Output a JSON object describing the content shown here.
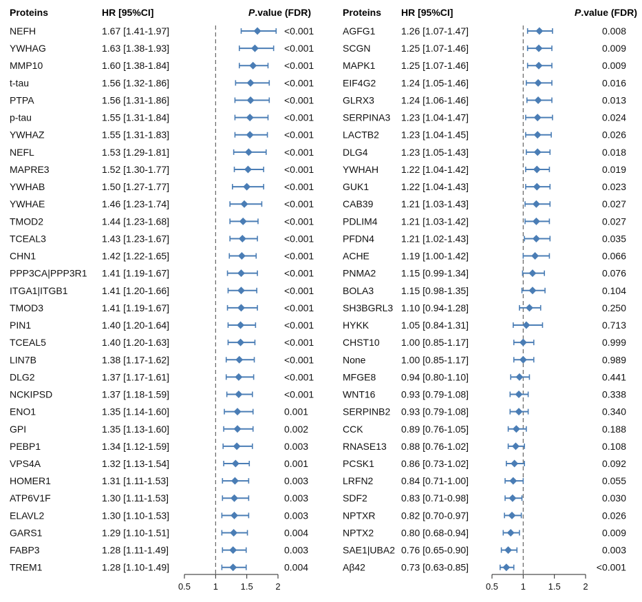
{
  "chart_data": [
    {
      "type": "forest",
      "columns": {
        "proteins": "Proteins",
        "hr": "HR [95%CI]",
        "p_italic": "P",
        "p_rest": ".value (FDR)"
      },
      "xlim": [
        0.5,
        2
      ],
      "xticks": [
        "0.5",
        "1",
        "1.5",
        "2"
      ],
      "reference_line": 1,
      "point_color": "#4A7DB5",
      "rows": [
        {
          "protein": "NEFH",
          "hr_text": "1.67 [1.41-1.97]",
          "p_text": "<0.001",
          "hr": 1.67,
          "lo": 1.41,
          "hi": 1.97
        },
        {
          "protein": "YWHAG",
          "hr_text": "1.63 [1.38-1.93]",
          "p_text": "<0.001",
          "hr": 1.63,
          "lo": 1.38,
          "hi": 1.93
        },
        {
          "protein": "MMP10",
          "hr_text": "1.60 [1.38-1.84]",
          "p_text": "<0.001",
          "hr": 1.6,
          "lo": 1.38,
          "hi": 1.84
        },
        {
          "protein": "t-tau",
          "hr_text": "1.56 [1.32-1.86]",
          "p_text": "<0.001",
          "hr": 1.56,
          "lo": 1.32,
          "hi": 1.86
        },
        {
          "protein": "PTPA",
          "hr_text": "1.56 [1.31-1.86]",
          "p_text": "<0.001",
          "hr": 1.56,
          "lo": 1.31,
          "hi": 1.86
        },
        {
          "protein": "p-tau",
          "hr_text": "1.55 [1.31-1.84]",
          "p_text": "<0.001",
          "hr": 1.55,
          "lo": 1.31,
          "hi": 1.84
        },
        {
          "protein": "YWHAZ",
          "hr_text": "1.55 [1.31-1.83]",
          "p_text": "<0.001",
          "hr": 1.55,
          "lo": 1.31,
          "hi": 1.83
        },
        {
          "protein": "NEFL",
          "hr_text": "1.53 [1.29-1.81]",
          "p_text": "<0.001",
          "hr": 1.53,
          "lo": 1.29,
          "hi": 1.81
        },
        {
          "protein": "MAPRE3",
          "hr_text": "1.52 [1.30-1.77]",
          "p_text": "<0.001",
          "hr": 1.52,
          "lo": 1.3,
          "hi": 1.77
        },
        {
          "protein": "YWHAB",
          "hr_text": "1.50 [1.27-1.77]",
          "p_text": "<0.001",
          "hr": 1.5,
          "lo": 1.27,
          "hi": 1.77
        },
        {
          "protein": "YWHAE",
          "hr_text": "1.46 [1.23-1.74]",
          "p_text": "<0.001",
          "hr": 1.46,
          "lo": 1.23,
          "hi": 1.74
        },
        {
          "protein": "TMOD2",
          "hr_text": "1.44 [1.23-1.68]",
          "p_text": "<0.001",
          "hr": 1.44,
          "lo": 1.23,
          "hi": 1.68
        },
        {
          "protein": "TCEAL3",
          "hr_text": "1.43 [1.23-1.67]",
          "p_text": "<0.001",
          "hr": 1.43,
          "lo": 1.23,
          "hi": 1.67
        },
        {
          "protein": "CHN1",
          "hr_text": "1.42 [1.22-1.65]",
          "p_text": "<0.001",
          "hr": 1.42,
          "lo": 1.22,
          "hi": 1.65
        },
        {
          "protein": "PPP3CA|PPP3R1",
          "hr_text": "1.41 [1.19-1.67]",
          "p_text": "<0.001",
          "hr": 1.41,
          "lo": 1.19,
          "hi": 1.67
        },
        {
          "protein": "ITGA1|ITGB1",
          "hr_text": "1.41 [1.20-1.66]",
          "p_text": "<0.001",
          "hr": 1.41,
          "lo": 1.2,
          "hi": 1.66
        },
        {
          "protein": "TMOD3",
          "hr_text": "1.41 [1.19-1.67]",
          "p_text": "<0.001",
          "hr": 1.41,
          "lo": 1.19,
          "hi": 1.67
        },
        {
          "protein": "PIN1",
          "hr_text": "1.40 [1.20-1.64]",
          "p_text": "<0.001",
          "hr": 1.4,
          "lo": 1.2,
          "hi": 1.64
        },
        {
          "protein": "TCEAL5",
          "hr_text": "1.40 [1.20-1.63]",
          "p_text": "<0.001",
          "hr": 1.4,
          "lo": 1.2,
          "hi": 1.63
        },
        {
          "protein": "LIN7B",
          "hr_text": "1.38 [1.17-1.62]",
          "p_text": "<0.001",
          "hr": 1.38,
          "lo": 1.17,
          "hi": 1.62
        },
        {
          "protein": "DLG2",
          "hr_text": "1.37 [1.17-1.61]",
          "p_text": "<0.001",
          "hr": 1.37,
          "lo": 1.17,
          "hi": 1.61
        },
        {
          "protein": "NCKIPSD",
          "hr_text": "1.37 [1.18-1.59]",
          "p_text": "<0.001",
          "hr": 1.37,
          "lo": 1.18,
          "hi": 1.59
        },
        {
          "protein": "ENO1",
          "hr_text": "1.35 [1.14-1.60]",
          "p_text": "0.001",
          "hr": 1.35,
          "lo": 1.14,
          "hi": 1.6
        },
        {
          "protein": "GPI",
          "hr_text": "1.35 [1.13-1.60]",
          "p_text": "0.002",
          "hr": 1.35,
          "lo": 1.13,
          "hi": 1.6
        },
        {
          "protein": "PEBP1",
          "hr_text": "1.34 [1.12-1.59]",
          "p_text": "0.003",
          "hr": 1.34,
          "lo": 1.12,
          "hi": 1.59
        },
        {
          "protein": "VPS4A",
          "hr_text": "1.32 [1.13-1.54]",
          "p_text": "0.001",
          "hr": 1.32,
          "lo": 1.13,
          "hi": 1.54
        },
        {
          "protein": "HOMER1",
          "hr_text": "1.31 [1.11-1.53]",
          "p_text": "0.003",
          "hr": 1.31,
          "lo": 1.11,
          "hi": 1.53
        },
        {
          "protein": "ATP6V1F",
          "hr_text": "1.30 [1.11-1.53]",
          "p_text": "0.003",
          "hr": 1.3,
          "lo": 1.11,
          "hi": 1.53
        },
        {
          "protein": "ELAVL2",
          "hr_text": "1.30 [1.10-1.53]",
          "p_text": "0.003",
          "hr": 1.3,
          "lo": 1.1,
          "hi": 1.53
        },
        {
          "protein": "GARS1",
          "hr_text": "1.29 [1.10-1.51]",
          "p_text": "0.004",
          "hr": 1.29,
          "lo": 1.1,
          "hi": 1.51
        },
        {
          "protein": "FABP3",
          "hr_text": "1.28 [1.11-1.49]",
          "p_text": "0.003",
          "hr": 1.28,
          "lo": 1.11,
          "hi": 1.49
        },
        {
          "protein": "TREM1",
          "hr_text": "1.28 [1.10-1.49]",
          "p_text": "0.004",
          "hr": 1.28,
          "lo": 1.1,
          "hi": 1.49
        }
      ]
    },
    {
      "type": "forest",
      "columns": {
        "proteins": "Proteins",
        "hr": "HR [95%CI]",
        "p_italic": "P",
        "p_rest": ".value (FDR)"
      },
      "xlim": [
        0.5,
        2
      ],
      "xticks": [
        "0.5",
        "1",
        "1.5",
        "2"
      ],
      "reference_line": 1,
      "point_color": "#4A7DB5",
      "rows": [
        {
          "protein": "AGFG1",
          "hr_text": "1.26 [1.07-1.47]",
          "p_text": "0.008",
          "hr": 1.26,
          "lo": 1.07,
          "hi": 1.47
        },
        {
          "protein": "SCGN",
          "hr_text": "1.25 [1.07-1.46]",
          "p_text": "0.009",
          "hr": 1.25,
          "lo": 1.07,
          "hi": 1.46
        },
        {
          "protein": "MAPK1",
          "hr_text": "1.25 [1.07-1.46]",
          "p_text": "0.009",
          "hr": 1.25,
          "lo": 1.07,
          "hi": 1.46
        },
        {
          "protein": "EIF4G2",
          "hr_text": "1.24 [1.05-1.46]",
          "p_text": "0.016",
          "hr": 1.24,
          "lo": 1.05,
          "hi": 1.46
        },
        {
          "protein": "GLRX3",
          "hr_text": "1.24 [1.06-1.46]",
          "p_text": "0.013",
          "hr": 1.24,
          "lo": 1.06,
          "hi": 1.46
        },
        {
          "protein": "SERPINA3",
          "hr_text": "1.23 [1.04-1.47]",
          "p_text": "0.024",
          "hr": 1.23,
          "lo": 1.04,
          "hi": 1.47
        },
        {
          "protein": "LACTB2",
          "hr_text": "1.23 [1.04-1.45]",
          "p_text": "0.026",
          "hr": 1.23,
          "lo": 1.04,
          "hi": 1.45
        },
        {
          "protein": "DLG4",
          "hr_text": "1.23 [1.05-1.43]",
          "p_text": "0.018",
          "hr": 1.23,
          "lo": 1.05,
          "hi": 1.43
        },
        {
          "protein": "YWHAH",
          "hr_text": "1.22 [1.04-1.42]",
          "p_text": "0.019",
          "hr": 1.22,
          "lo": 1.04,
          "hi": 1.42
        },
        {
          "protein": "GUK1",
          "hr_text": "1.22 [1.04-1.43]",
          "p_text": "0.023",
          "hr": 1.22,
          "lo": 1.04,
          "hi": 1.43
        },
        {
          "protein": "CAB39",
          "hr_text": "1.21 [1.03-1.43]",
          "p_text": "0.027",
          "hr": 1.21,
          "lo": 1.03,
          "hi": 1.43
        },
        {
          "protein": "PDLIM4",
          "hr_text": "1.21 [1.03-1.42]",
          "p_text": "0.027",
          "hr": 1.21,
          "lo": 1.03,
          "hi": 1.42
        },
        {
          "protein": "PFDN4",
          "hr_text": "1.21 [1.02-1.43]",
          "p_text": "0.035",
          "hr": 1.21,
          "lo": 1.02,
          "hi": 1.43
        },
        {
          "protein": "ACHE",
          "hr_text": "1.19 [1.00-1.42]",
          "p_text": "0.066",
          "hr": 1.19,
          "lo": 1.0,
          "hi": 1.42
        },
        {
          "protein": "PNMA2",
          "hr_text": "1.15 [0.99-1.34]",
          "p_text": "0.076",
          "hr": 1.15,
          "lo": 0.99,
          "hi": 1.34
        },
        {
          "protein": "BOLA3",
          "hr_text": "1.15 [0.98-1.35]",
          "p_text": "0.104",
          "hr": 1.15,
          "lo": 0.98,
          "hi": 1.35
        },
        {
          "protein": "SH3BGRL3",
          "hr_text": "1.10 [0.94-1.28]",
          "p_text": "0.250",
          "hr": 1.1,
          "lo": 0.94,
          "hi": 1.28
        },
        {
          "protein": "HYKK",
          "hr_text": "1.05 [0.84-1.31]",
          "p_text": "0.713",
          "hr": 1.05,
          "lo": 0.84,
          "hi": 1.31
        },
        {
          "protein": "CHST10",
          "hr_text": "1.00 [0.85-1.17]",
          "p_text": "0.999",
          "hr": 1.0,
          "lo": 0.85,
          "hi": 1.17
        },
        {
          "protein": "None",
          "hr_text": "1.00 [0.85-1.17]",
          "p_text": "0.989",
          "hr": 1.0,
          "lo": 0.85,
          "hi": 1.17
        },
        {
          "protein": "MFGE8",
          "hr_text": "0.94 [0.80-1.10]",
          "p_text": "0.441",
          "hr": 0.94,
          "lo": 0.8,
          "hi": 1.1
        },
        {
          "protein": "WNT16",
          "hr_text": "0.93 [0.79-1.08]",
          "p_text": "0.338",
          "hr": 0.93,
          "lo": 0.79,
          "hi": 1.08
        },
        {
          "protein": "SERPINB2",
          "hr_text": "0.93 [0.79-1.08]",
          "p_text": "0.340",
          "hr": 0.93,
          "lo": 0.79,
          "hi": 1.08
        },
        {
          "protein": "CCK",
          "hr_text": "0.89 [0.76-1.05]",
          "p_text": "0.188",
          "hr": 0.89,
          "lo": 0.76,
          "hi": 1.05
        },
        {
          "protein": "RNASE13",
          "hr_text": "0.88 [0.76-1.02]",
          "p_text": "0.108",
          "hr": 0.88,
          "lo": 0.76,
          "hi": 1.02
        },
        {
          "protein": "PCSK1",
          "hr_text": "0.86 [0.73-1.02]",
          "p_text": "0.092",
          "hr": 0.86,
          "lo": 0.73,
          "hi": 1.02
        },
        {
          "protein": "LRFN2",
          "hr_text": "0.84 [0.71-1.00]",
          "p_text": "0.055",
          "hr": 0.84,
          "lo": 0.71,
          "hi": 1.0
        },
        {
          "protein": "SDF2",
          "hr_text": "0.83 [0.71-0.98]",
          "p_text": "0.030",
          "hr": 0.83,
          "lo": 0.71,
          "hi": 0.98
        },
        {
          "protein": "NPTXR",
          "hr_text": "0.82 [0.70-0.97]",
          "p_text": "0.026",
          "hr": 0.82,
          "lo": 0.7,
          "hi": 0.97
        },
        {
          "protein": "NPTX2",
          "hr_text": "0.80 [0.68-0.94]",
          "p_text": "0.009",
          "hr": 0.8,
          "lo": 0.68,
          "hi": 0.94
        },
        {
          "protein": "SAE1|UBA2",
          "hr_text": "0.76 [0.65-0.90]",
          "p_text": "0.003",
          "hr": 0.76,
          "lo": 0.65,
          "hi": 0.9
        },
        {
          "protein": "Aβ42",
          "hr_text": "0.73 [0.63-0.85]",
          "p_text": "<0.001",
          "hr": 0.73,
          "lo": 0.63,
          "hi": 0.85
        }
      ]
    }
  ]
}
